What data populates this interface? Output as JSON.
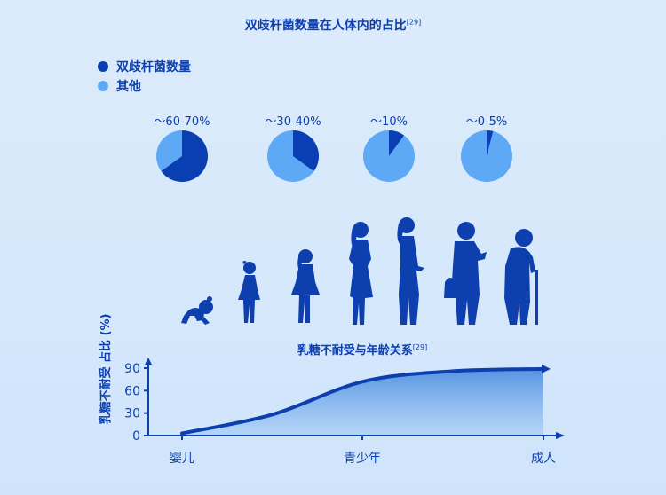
{
  "title": "双歧杆菌数量在人体内的占比",
  "title_ref": "[29]",
  "legend": [
    {
      "label": "双歧杆菌数量",
      "color": "#0a3eb3"
    },
    {
      "label": "其他",
      "color": "#5ea9f6"
    }
  ],
  "pies": [
    {
      "label": "〜60-70%",
      "fraction": 0.65
    },
    {
      "label": "〜30-40%",
      "fraction": 0.35
    },
    {
      "label": "〜10%",
      "fraction": 0.1
    },
    {
      "label": "〜0-5%",
      "fraction": 0.04
    }
  ],
  "silhouette_color": "#0d3fae",
  "chart_data": {
    "type": "area",
    "title": "乳糖不耐受与年龄关系",
    "title_ref": "[29]",
    "ylabel": "乳糖不耐受 占比 (%)",
    "xlabel": "",
    "y_ticks": [
      0,
      30,
      60,
      90
    ],
    "ylim": [
      0,
      100
    ],
    "x_categories": [
      "婴儿",
      "青少年",
      "成人"
    ],
    "series": [
      {
        "x": [
          0,
          0.25,
          0.5,
          0.75,
          1.0
        ],
        "y": [
          3,
          28,
          72,
          86,
          89
        ]
      }
    ],
    "grid": false,
    "fill_color": "#3f84dd",
    "line_color": "#0d3fae"
  }
}
